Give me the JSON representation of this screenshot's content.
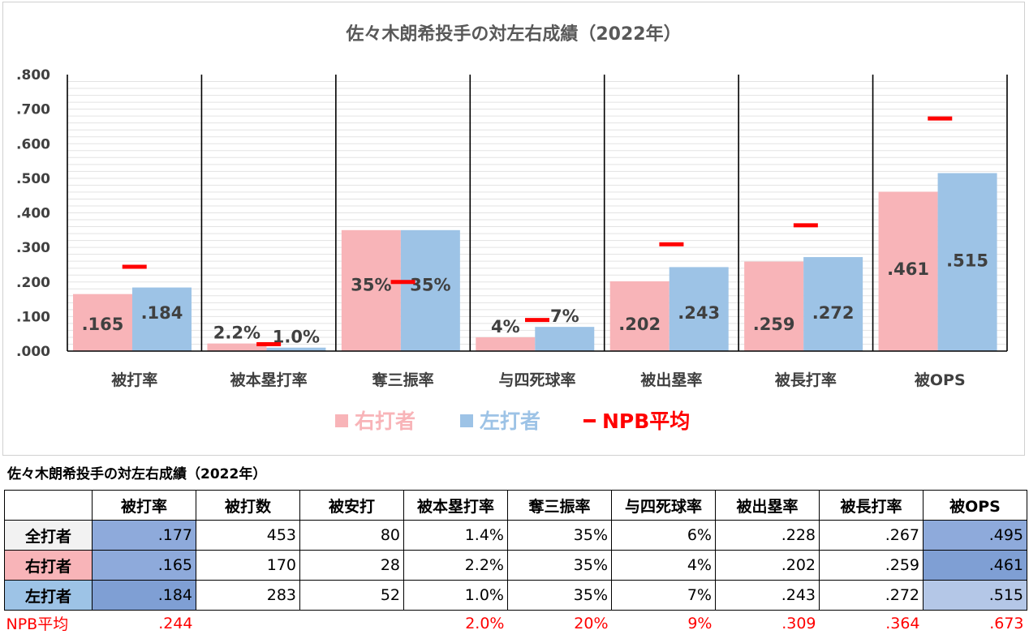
{
  "chart_data": {
    "type": "bar",
    "title": "佐々木朗希投手の対左右成績（2022年）",
    "categories": [
      "被打率",
      "被本塁打率",
      "奪三振率",
      "与四死球率",
      "被出塁率",
      "被長打率",
      "被OPS"
    ],
    "series": [
      {
        "name": "右打者",
        "color": "#f8b4b8",
        "values": [
          0.165,
          0.022,
          0.35,
          0.04,
          0.202,
          0.259,
          0.461
        ],
        "labels": [
          ".165",
          "2.2%",
          "35%",
          "4%",
          ".202",
          ".259",
          ".461"
        ]
      },
      {
        "name": "左打者",
        "color": "#9dc3e6",
        "values": [
          0.184,
          0.01,
          0.35,
          0.07,
          0.243,
          0.272,
          0.515
        ],
        "labels": [
          ".184",
          "1.0%",
          "35%",
          "7%",
          ".243",
          ".272",
          ".515"
        ]
      },
      {
        "name": "NPB平均",
        "color": "#ff0000",
        "type": "marker",
        "values": [
          0.244,
          0.02,
          0.2,
          0.09,
          0.309,
          0.364,
          0.673
        ]
      }
    ],
    "ylim": [
      0,
      0.8
    ],
    "yticks": [
      ".800",
      ".700",
      ".600",
      ".500",
      ".400",
      ".300",
      ".200",
      ".100",
      ".000"
    ],
    "grid": true,
    "legend": "bottom"
  },
  "table": {
    "title": "佐々木朗希投手の対左右成績（2022年）",
    "headers": [
      "被打率",
      "被打数",
      "被安打",
      "被本塁打率",
      "奪三振率",
      "与四死球率",
      "被出塁率",
      "被長打率",
      "被OPS"
    ],
    "rows": [
      {
        "label": "全打者",
        "cells": [
          ".177",
          "453",
          "80",
          "1.4%",
          "35%",
          "6%",
          ".228",
          ".267",
          ".495"
        ]
      },
      {
        "label": "右打者",
        "cells": [
          ".165",
          "170",
          "28",
          "2.2%",
          "35%",
          "4%",
          ".202",
          ".259",
          ".461"
        ]
      },
      {
        "label": "左打者",
        "cells": [
          ".184",
          "283",
          "52",
          "1.0%",
          "35%",
          "7%",
          ".243",
          ".272",
          ".515"
        ]
      }
    ],
    "npb": {
      "label": "NPB平均",
      "cells": [
        ".244",
        "",
        "",
        "2.0%",
        "20%",
        "9%",
        ".309",
        ".364",
        ".673"
      ]
    },
    "colors": {
      "right_row_label_bg": "#f8b4b8",
      "left_row_label_bg": "#9dc3e6",
      "label_bg": "#f2f2f2",
      "heat_dark": "#8eaadb",
      "heat_mid": "#8eaadb",
      "heat_light": "#b4c7e7",
      "npb_text": "#ff0000"
    }
  }
}
